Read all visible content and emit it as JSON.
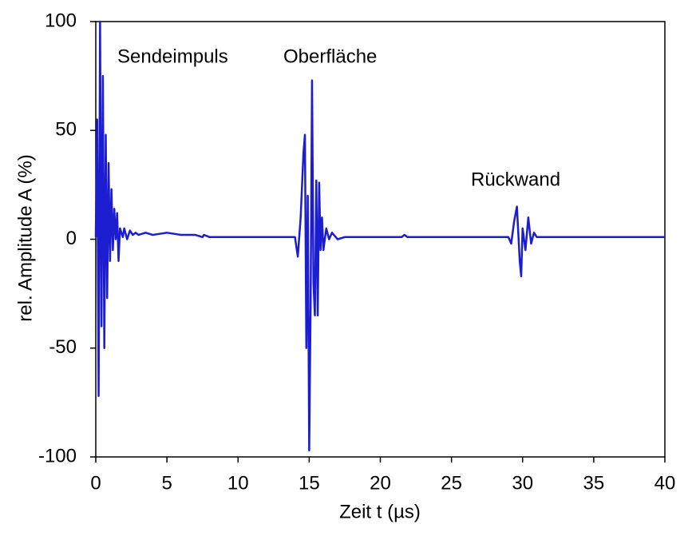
{
  "chart_data": {
    "type": "line",
    "xlabel": "Zeit t (µs)",
    "ylabel": "rel. Amplitude  A (%)",
    "annotations": [
      "Sendeimpuls",
      "Oberfläche",
      "Rückwand"
    ],
    "xlim": [
      0,
      40
    ],
    "xticks": [
      0,
      5,
      10,
      15,
      20,
      25,
      30,
      35,
      40
    ],
    "ylim": [
      -100,
      100
    ],
    "yticks": [
      -100,
      -50,
      0,
      50,
      100
    ],
    "series": [
      {
        "color": "#1c1cd0",
        "x": [
          0,
          0.1,
          0.2,
          0.3,
          0.4,
          0.5,
          0.6,
          0.7,
          0.8,
          0.9,
          1.0,
          1.1,
          1.2,
          1.3,
          1.4,
          1.5,
          1.6,
          1.7,
          1.8,
          1.9,
          2.0,
          2.2,
          2.4,
          2.6,
          2.8,
          3.0,
          3.5,
          4,
          5,
          6,
          7,
          7.5,
          7.6,
          8,
          14,
          14.2,
          14.4,
          14.6,
          14.7,
          14.8,
          14.9,
          15.0,
          15.1,
          15.2,
          15.3,
          15.4,
          15.5,
          15.6,
          15.7,
          15.8,
          15.9,
          16.0,
          16.2,
          16.4,
          16.6,
          17,
          17.5,
          18,
          21.5,
          21.7,
          21.9,
          29,
          29.2,
          29.4,
          29.6,
          29.8,
          29.9,
          30.0,
          30.2,
          30.4,
          30.6,
          30.8,
          31,
          31.5,
          32,
          40
        ],
        "values": [
          1,
          55,
          -72,
          100,
          -40,
          75,
          -50,
          48,
          -27,
          35,
          -10,
          23,
          -5,
          14,
          0,
          12,
          -10,
          5,
          3,
          1,
          5,
          0,
          4,
          2,
          3,
          2,
          3,
          2,
          3,
          2,
          2,
          1,
          2,
          1,
          1,
          -8,
          10,
          40,
          48,
          -50,
          20,
          -97,
          -30,
          73,
          -20,
          -35,
          27,
          -35,
          26,
          -5,
          10,
          -5,
          5,
          0,
          3,
          0,
          1,
          1,
          1,
          2,
          1,
          1,
          -2,
          8,
          15,
          -10,
          -17,
          5,
          -5,
          10,
          -2,
          3,
          1,
          1,
          1,
          1
        ]
      }
    ]
  }
}
